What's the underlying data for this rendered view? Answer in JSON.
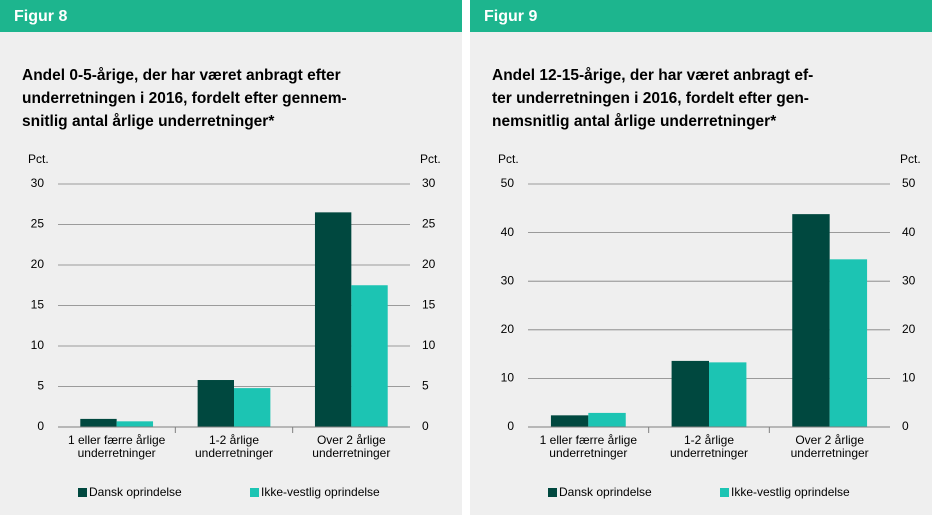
{
  "chart_data": [
    {
      "type": "bar",
      "figure": "Figur 8",
      "title": [
        "Andel 0-5-årige, der har været anbragt efter",
        "underretningen i 2016, fordelt efter gennem-",
        "snitlig antal årlige underretninger*"
      ],
      "ylabel": "Pct.",
      "y2label": "Pct.",
      "categories": [
        [
          "1 eller færre årlige",
          "underretninger"
        ],
        [
          "1-2 årlige",
          "underretninger"
        ],
        [
          "Over 2 årlige",
          "underretninger"
        ]
      ],
      "series": [
        {
          "name": "Dansk oprindelse",
          "color": "#00483f",
          "values": [
            1.0,
            5.8,
            26.5
          ]
        },
        {
          "name": "Ikke-vestlig oprindelse",
          "color": "#1cc4b3",
          "values": [
            0.7,
            4.8,
            17.5
          ]
        }
      ],
      "ylim": [
        0,
        30
      ],
      "yticks": [
        0,
        5,
        10,
        15,
        20,
        25,
        30
      ],
      "y2lim": [
        0,
        30
      ],
      "y2ticks": [
        0,
        5,
        10,
        15,
        20,
        25,
        30
      ],
      "grid": true
    },
    {
      "type": "bar",
      "figure": "Figur 9",
      "title": [
        "Andel 12-15-årige, der har været anbragt ef-",
        "ter underretningen i 2016, fordelt efter gen-",
        "nemsnitlig antal årlige underretninger*"
      ],
      "ylabel": "Pct.",
      "y2label": "Pct.",
      "categories": [
        [
          "1 eller færre årlige",
          "underretninger"
        ],
        [
          "1-2 årlige",
          "underretninger"
        ],
        [
          "Over 2 årlige",
          "underretninger"
        ]
      ],
      "series": [
        {
          "name": "Dansk oprindelse",
          "color": "#00483f",
          "values": [
            2.4,
            13.6,
            43.8
          ]
        },
        {
          "name": "Ikke-vestlig oprindelse",
          "color": "#1cc4b3",
          "values": [
            2.9,
            13.3,
            34.5
          ]
        }
      ],
      "ylim": [
        0,
        50
      ],
      "yticks": [
        0,
        10,
        20,
        30,
        40,
        50
      ],
      "y2lim": [
        0,
        50
      ],
      "y2ticks": [
        0,
        10,
        20,
        30,
        40,
        50
      ],
      "grid": true
    }
  ]
}
